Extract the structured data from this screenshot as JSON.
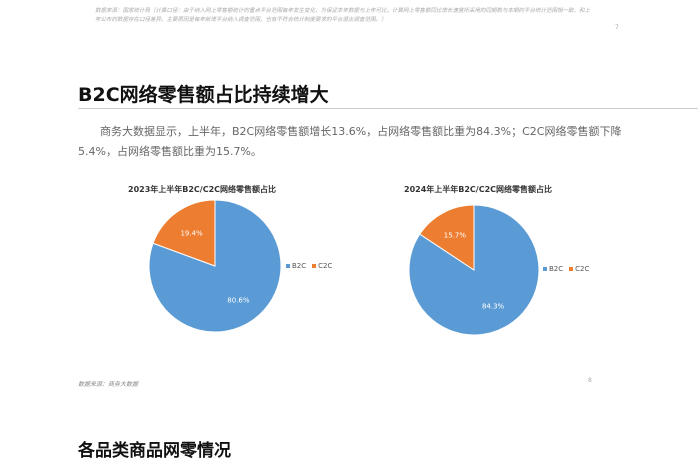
{
  "header": {
    "note": "数据来源：国家统计局（计算口径：由于纳入网上零售额统计的重点平台范围每年发生变化，为保证本年数据与上年可比，计算网上零售额同比增长速度所采用的同期数与本期的平台统计范围相一致，和上年公布的数据存在口径差异。主要原因是每年新增平台纳入调查范围，也有不符合统计制度要求的平台退出调查范围。）",
    "page_number": "7"
  },
  "section": {
    "title": "B2C网络零售额占比持续增大",
    "paragraph": "商务大数据显示，上半年，B2C网络零售额增长13.6%，占网络零售额比重为84.3%；C2C网络零售额下降5.4%，占网络零售额比重为15.7%。",
    "source": "数据来源：商务大数据",
    "page_number": "8"
  },
  "next_section": {
    "title": "各品类商品网零情况"
  },
  "colors": {
    "B2C": "#5b9bd5",
    "C2C": "#ed7d31"
  },
  "chart_data": [
    {
      "type": "pie",
      "title": "2023年上半年B2C/C2C网络零售额占比",
      "categories": [
        "B2C",
        "C2C"
      ],
      "values": [
        80.6,
        19.4
      ],
      "labels": [
        "80.6%",
        "19.4%"
      ],
      "legend": "right"
    },
    {
      "type": "pie",
      "title": "2024年上半年B2C/C2C网络零售额占比",
      "categories": [
        "B2C",
        "C2C"
      ],
      "values": [
        84.3,
        15.7
      ],
      "labels": [
        "84.3%",
        "15.7%"
      ],
      "legend": "right"
    }
  ]
}
